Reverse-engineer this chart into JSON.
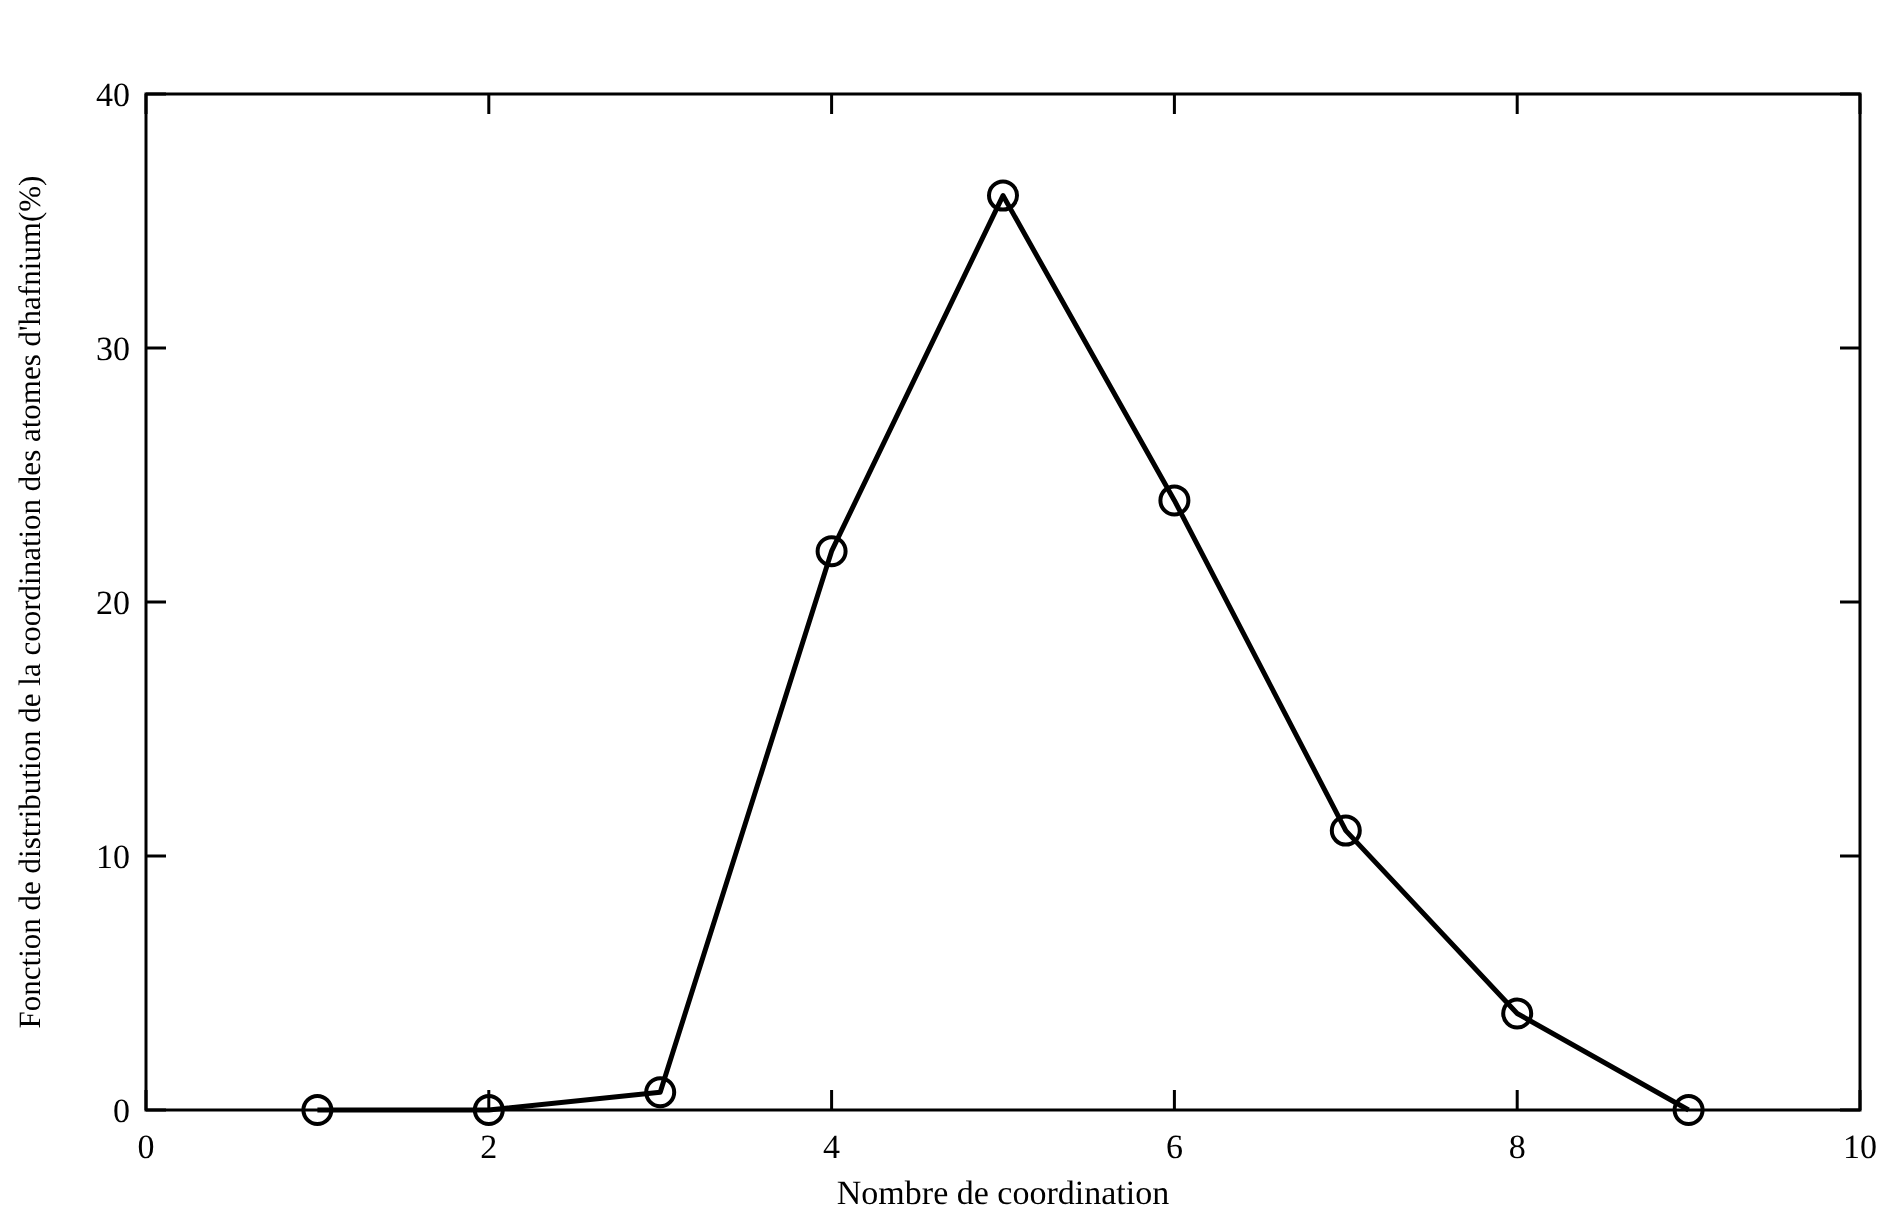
{
  "chart_data": {
    "type": "line",
    "xlabel": "Nombre de coordination",
    "ylabel": "Fonction de distribution de la coordination des atomes d'hafnium(%)",
    "x": [
      1,
      2,
      3,
      4,
      5,
      6,
      7,
      8,
      9
    ],
    "series": [
      {
        "color": "#000000",
        "values": [
          0,
          0,
          0.7,
          22,
          36,
          24,
          11,
          3.8,
          0
        ]
      }
    ],
    "xlim": [
      0,
      10
    ],
    "xticks": [
      0,
      2,
      4,
      6,
      8,
      10
    ],
    "ylim": [
      0,
      40
    ],
    "yticks": [
      0,
      10,
      20,
      30,
      40
    ],
    "grid": false,
    "marker": "circle",
    "line_style": "solid"
  }
}
